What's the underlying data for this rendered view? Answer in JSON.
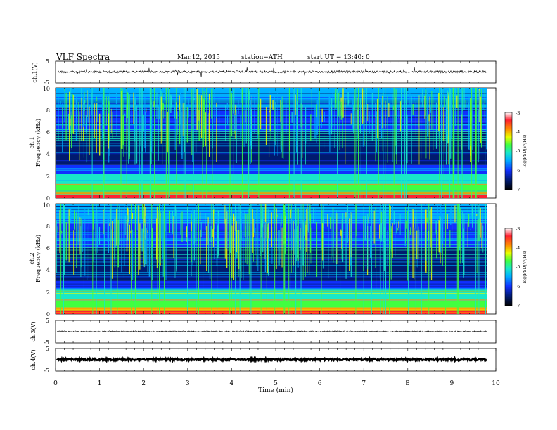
{
  "header": {
    "title": "VLF  Spectra",
    "date": "Mar.12, 2015",
    "station": "station=ATH",
    "start": "start  UT =   13:40: 0"
  },
  "chart_data": [
    {
      "type": "line",
      "ylabel": "ch.1(V)",
      "yticks": [
        "5",
        "-5"
      ],
      "ylim": [
        -5,
        5
      ],
      "mean_level": 0.1,
      "noise_amplitude": 0.5
    },
    {
      "type": "heatmap",
      "ylabel_channel": "ch.1",
      "ylabel": "Frequency  (kHz)",
      "yticks": [
        "0",
        "2",
        "4",
        "6",
        "8",
        "10"
      ],
      "ylim": [
        0,
        10
      ],
      "colorbar": {
        "label": "log(PSD(V²/Hz)",
        "ticks": [
          "-3",
          "-4",
          "-5",
          "-6",
          "-7"
        ],
        "range": [
          -7,
          -3
        ]
      },
      "data_end_min": 9.8
    },
    {
      "type": "heatmap",
      "ylabel_channel": "ch.2",
      "ylabel": "Frequency  (kHz)",
      "yticks": [
        "0",
        "2",
        "4",
        "6",
        "8",
        "10"
      ],
      "ylim": [
        0,
        10
      ],
      "colorbar": {
        "label": "log(PSD(V²/Hz)",
        "ticks": [
          "-3",
          "-4",
          "-5",
          "-6",
          "-7"
        ],
        "range": [
          -7,
          -3
        ]
      },
      "data_end_min": 9.8
    },
    {
      "type": "line",
      "ylabel": "ch.3(V)",
      "yticks": [
        "5",
        "-5"
      ],
      "ylim": [
        -5,
        5
      ],
      "mean_level": 0.1,
      "noise_amplitude": 0.25
    },
    {
      "type": "line",
      "ylabel": "ch.4(V)",
      "yticks": [
        "5",
        "-5"
      ],
      "ylim": [
        -5,
        5
      ],
      "mean_level": 0.1,
      "noise_amplitude": 0.4
    }
  ],
  "xaxis": {
    "label": "Time  (min)",
    "ticks": [
      "0",
      "1",
      "2",
      "3",
      "4",
      "5",
      "6",
      "7",
      "8",
      "9",
      "10"
    ],
    "xlim": [
      0,
      10
    ]
  },
  "colors": {
    "spectrogram": [
      "#000000",
      "#001a6e",
      "#1030ff",
      "#00b0ff",
      "#18e8c8",
      "#40ff40",
      "#e8ff00",
      "#ff9000",
      "#ff2030",
      "#ffffff"
    ]
  }
}
